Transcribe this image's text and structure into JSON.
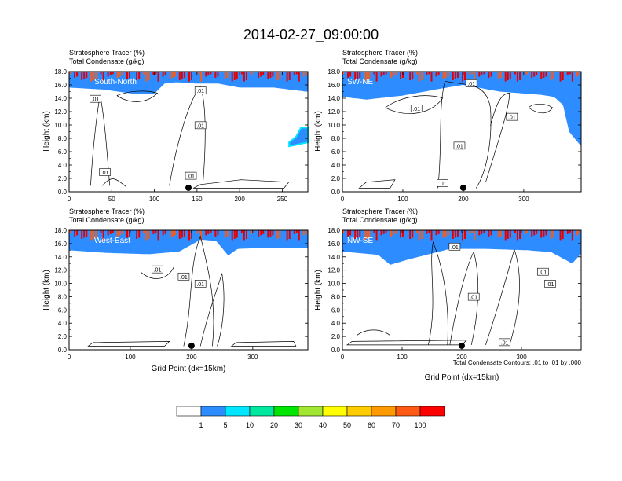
{
  "figure": {
    "title": "2014-02-27_09:00:00",
    "footnote": "Total Condensate Contours: .01 to .01 by .000"
  },
  "chart_data": [
    {
      "type": "heatmap",
      "panel_label": "South-North",
      "subtitle_lines": [
        "Stratosphere Tracer   (%)",
        "Total Condensate   (g/kg)"
      ],
      "ylabel": "Height (km)",
      "xlabel": "",
      "xlim": [
        0,
        280
      ],
      "ylim": [
        0,
        18
      ],
      "xticks": [
        0,
        50,
        100,
        150,
        200,
        250
      ],
      "yticks": [
        0.0,
        2.0,
        4.0,
        6.0,
        8.0,
        10.0,
        12.0,
        14.0,
        16.0,
        18.0
      ],
      "marker_x": 140,
      "contour_labels": [
        ".01",
        ".01",
        ".01",
        ".01",
        ".01"
      ],
      "tracer_base": [
        [
          0,
          15.6
        ],
        [
          40,
          15.3
        ],
        [
          80,
          14.6
        ],
        [
          100,
          14.7
        ],
        [
          112,
          16.2
        ],
        [
          125,
          16.4
        ],
        [
          150,
          16.2
        ],
        [
          175,
          16.2
        ],
        [
          200,
          15.6
        ],
        [
          240,
          15.6
        ],
        [
          265,
          15.2
        ],
        [
          278,
          15.0
        ]
      ],
      "tracer_tail": [
        [
          258,
          7.4
        ],
        [
          266,
          8.2
        ],
        [
          272,
          9.6
        ],
        [
          280,
          9.6
        ]
      ]
    },
    {
      "type": "heatmap",
      "panel_label": "SW-NE",
      "subtitle_lines": [
        "Stratosphere Tracer   (%)",
        "Total Condensate   (g/kg)"
      ],
      "ylabel": "Height (km)",
      "xlabel": "",
      "xlim": [
        0,
        395
      ],
      "ylim": [
        0,
        18
      ],
      "xticks": [
        0,
        100,
        200,
        300
      ],
      "yticks": [
        0.0,
        2.0,
        4.0,
        6.0,
        8.0,
        10.0,
        12.0,
        14.0,
        16.0,
        18.0
      ],
      "marker_x": 200,
      "contour_labels": [
        ".01",
        ".01",
        ".01",
        ".01",
        ".01"
      ],
      "tracer_base": [
        [
          0,
          14.2
        ],
        [
          40,
          13.8
        ],
        [
          100,
          14.4
        ],
        [
          160,
          15.4
        ],
        [
          200,
          16.0
        ],
        [
          260,
          15.0
        ],
        [
          330,
          14.5
        ],
        [
          350,
          14.2
        ],
        [
          365,
          13.0
        ],
        [
          375,
          9.0
        ],
        [
          395,
          6.8
        ]
      ],
      "tracer_tail": []
    },
    {
      "type": "heatmap",
      "panel_label": "West-East",
      "subtitle_lines": [
        "Stratosphere Tracer   (%)",
        "Total Condensate   (g/kg)"
      ],
      "ylabel": "Height (km)",
      "xlabel": "Grid Point (dx=15km)",
      "xlim": [
        0,
        390
      ],
      "ylim": [
        0,
        18
      ],
      "xticks": [
        0,
        100,
        200,
        300
      ],
      "yticks": [
        0.0,
        2.0,
        4.0,
        6.0,
        8.0,
        10.0,
        12.0,
        14.0,
        16.0,
        18.0
      ],
      "marker_x": 200,
      "contour_labels": [
        ".01",
        ".01",
        ".01"
      ],
      "tracer_base": [
        [
          0,
          15.0
        ],
        [
          60,
          14.6
        ],
        [
          130,
          14.4
        ],
        [
          180,
          14.8
        ],
        [
          215,
          16.6
        ],
        [
          240,
          16.4
        ],
        [
          260,
          14.2
        ],
        [
          275,
          15.2
        ],
        [
          330,
          15.4
        ],
        [
          390,
          15.4
        ]
      ],
      "tracer_tail": []
    },
    {
      "type": "heatmap",
      "panel_label": "NW-SE",
      "subtitle_lines": [
        "Stratosphere Tracer   (%)",
        "Total Condensate   (g/kg)"
      ],
      "ylabel": "Height (km)",
      "xlabel": "Grid Point (dx=15km)",
      "xlim": [
        0,
        400
      ],
      "ylim": [
        0,
        18
      ],
      "xticks": [
        0,
        100,
        200,
        300
      ],
      "yticks": [
        0.0,
        2.0,
        4.0,
        6.0,
        8.0,
        10.0,
        12.0,
        14.0,
        16.0,
        18.0
      ],
      "marker_x": 200,
      "contour_labels": [
        ".01",
        ".01",
        ".01",
        ".01",
        ".01"
      ],
      "tracer_base": [
        [
          0,
          14.8
        ],
        [
          60,
          14.3
        ],
        [
          80,
          12.8
        ],
        [
          110,
          13.6
        ],
        [
          180,
          15.2
        ],
        [
          240,
          15.2
        ],
        [
          310,
          15.0
        ],
        [
          350,
          14.7
        ],
        [
          385,
          13.0
        ],
        [
          400,
          14.5
        ]
      ],
      "tracer_tail": []
    }
  ],
  "colorbar": {
    "colors": [
      "#ffffff",
      "#2d8cff",
      "#00e6ff",
      "#00e8a0",
      "#00e600",
      "#a0e632",
      "#ffff00",
      "#ffcc00",
      "#ff9900",
      "#ff5a14",
      "#ff0000"
    ],
    "labels": [
      "1",
      "5",
      "10",
      "20",
      "30",
      "40",
      "50",
      "60",
      "70",
      "100"
    ]
  }
}
